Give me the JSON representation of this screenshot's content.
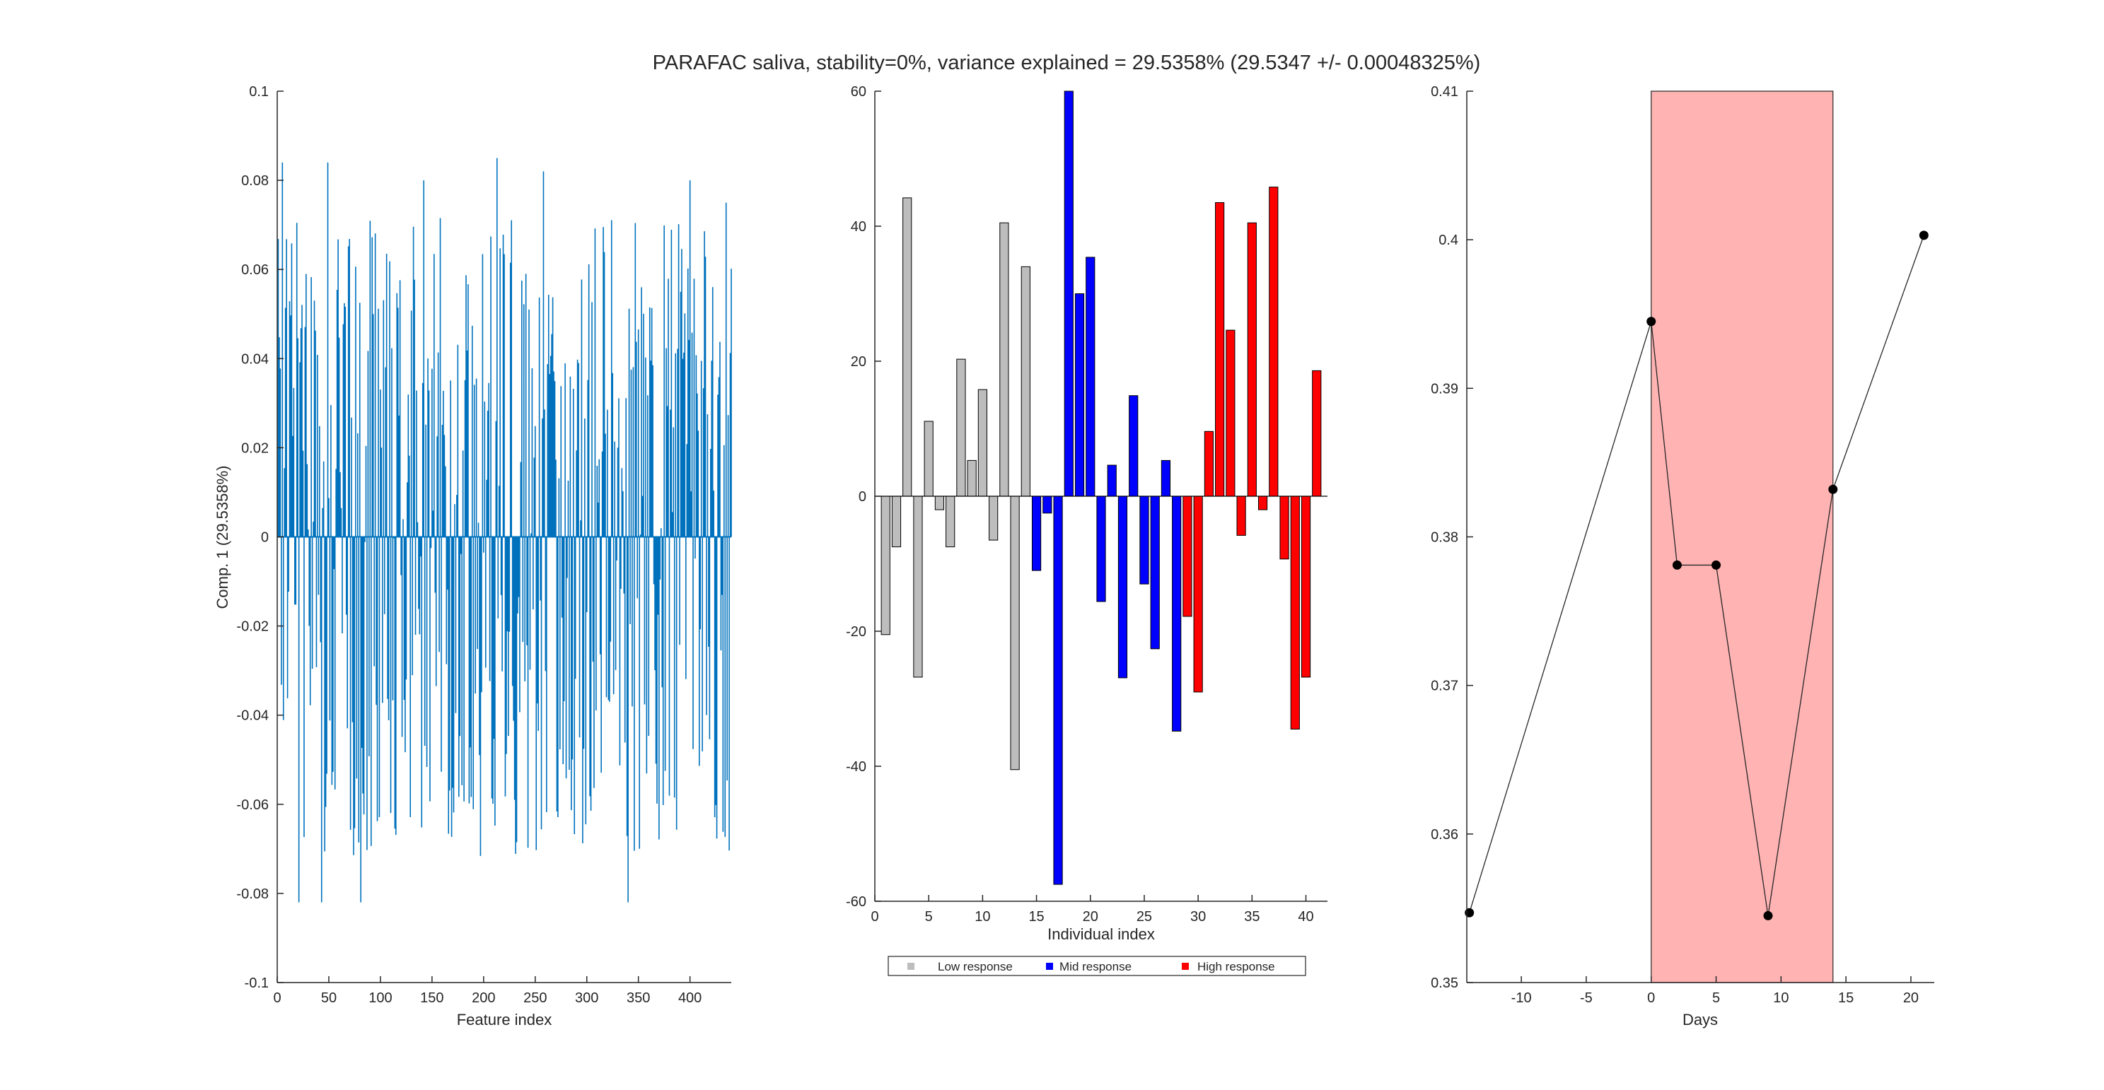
{
  "title": "PARAFAC saliva, stability=0%, variance explained =  29.5358% (29.5347 +/- 0.00048325%)",
  "chart_data": [
    {
      "type": "line",
      "panel": "left",
      "xlabel": "Feature index",
      "ylabel": "Comp. 1 (29.5358%)",
      "xlim": [
        0,
        440
      ],
      "ylim": [
        -0.1,
        0.1
      ],
      "xticks": [
        "0",
        "50",
        "100",
        "150",
        "200",
        "250",
        "300",
        "350",
        "400"
      ],
      "yticks": [
        "-0.1",
        "-0.08",
        "-0.06",
        "-0.04",
        "-0.02",
        "0",
        "0.02",
        "0.04",
        "0.06",
        "0.08",
        "0.1"
      ],
      "n_features": 440,
      "style": "stem",
      "color": "#0072bd",
      "peaks": [
        {
          "x": 5,
          "y": 0.084
        },
        {
          "x": 21,
          "y": -0.082
        },
        {
          "x": 43,
          "y": -0.082
        },
        {
          "x": 49,
          "y": 0.084
        },
        {
          "x": 81,
          "y": -0.082
        },
        {
          "x": 142,
          "y": 0.08
        },
        {
          "x": 213,
          "y": 0.085
        },
        {
          "x": 258,
          "y": 0.082
        },
        {
          "x": 340,
          "y": -0.082
        },
        {
          "x": 400,
          "y": 0.08
        },
        {
          "x": 435,
          "y": 0.075
        }
      ],
      "amplitude_range": [
        -0.082,
        0.085
      ]
    },
    {
      "type": "bar",
      "panel": "middle",
      "xlabel": "Individual index",
      "xlim": [
        0,
        42
      ],
      "ylim": [
        -60,
        60
      ],
      "xticks": [
        "0",
        "5",
        "10",
        "15",
        "20",
        "25",
        "30",
        "35",
        "40"
      ],
      "yticks": [
        "-60",
        "-40",
        "-20",
        "0",
        "20",
        "40",
        "60"
      ],
      "legend_position": "bottom-outside",
      "series": [
        {
          "name": "Low response",
          "color": "#bdbdbd",
          "x": [
            1,
            2,
            3,
            4,
            5,
            6,
            7,
            8,
            9,
            10,
            11,
            12,
            13,
            14
          ],
          "values": [
            -20.5,
            -7.5,
            44.2,
            -26.8,
            11.1,
            -2.0,
            -7.5,
            20.3,
            5.3,
            15.8,
            -6.5,
            40.5,
            -40.5,
            34.0
          ]
        },
        {
          "name": "Mid response",
          "color": "#0000ff",
          "x": [
            15,
            16,
            17,
            18,
            19,
            20,
            21,
            22,
            23,
            24,
            25,
            26,
            27,
            28
          ],
          "values": [
            -11.0,
            -2.5,
            -57.5,
            60.0,
            30.0,
            35.4,
            -15.6,
            4.6,
            -26.9,
            14.9,
            -13.0,
            -22.6,
            5.3,
            -34.8
          ]
        },
        {
          "name": "High response",
          "color": "#ff0000",
          "x": [
            29,
            30,
            31,
            32,
            33,
            34,
            35,
            36,
            37,
            38,
            39,
            40,
            41
          ],
          "values": [
            -17.8,
            -29.0,
            9.6,
            43.5,
            24.6,
            -5.8,
            40.5,
            -2.0,
            45.8,
            -9.3,
            -34.5,
            -26.8,
            18.6
          ]
        }
      ]
    },
    {
      "type": "line",
      "panel": "right",
      "xlabel": "Days",
      "xlim": [
        -14.2,
        21.8
      ],
      "ylim": [
        0.35,
        0.41
      ],
      "xticks": [
        "-10",
        "-5",
        "0",
        "5",
        "10",
        "15",
        "20"
      ],
      "yticks": [
        "0.35",
        "0.36",
        "0.37",
        "0.38",
        "0.39",
        "0.4",
        "0.41"
      ],
      "shaded_region": {
        "x0": 0,
        "x1": 14,
        "color": "#ffb3b3"
      },
      "series": [
        {
          "color": "#000000",
          "x": [
            -14,
            0,
            2,
            5,
            9,
            14,
            21
          ],
          "y": [
            0.3547,
            0.3945,
            0.3781,
            0.3781,
            0.3545,
            0.3832,
            0.4003
          ]
        }
      ]
    }
  ]
}
